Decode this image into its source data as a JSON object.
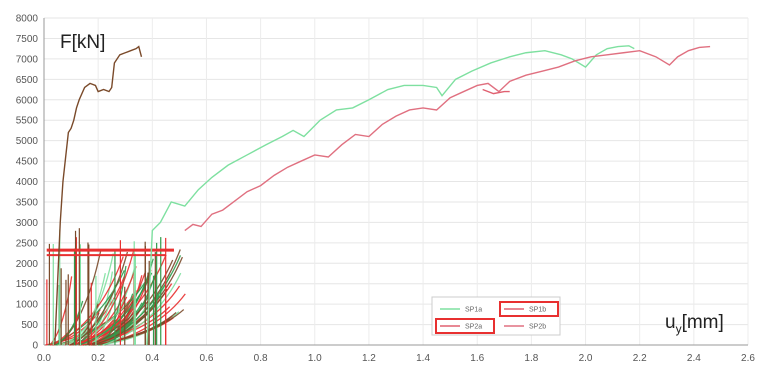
{
  "chart_data": {
    "type": "line",
    "title": "",
    "xlabel": "u",
    "xlabel_sub": "y",
    "xlabel_unit": "[mm]",
    "ylabel": "F[kN]",
    "xlim": [
      0,
      2.6
    ],
    "ylim": [
      0,
      8000
    ],
    "xticks": [
      "0.0",
      "0.2",
      "0.4",
      "0.6",
      "0.8",
      "1.0",
      "1.2",
      "1.4",
      "1.6",
      "1.8",
      "2.0",
      "2.2",
      "2.4",
      "2.6"
    ],
    "yticks": [
      "0",
      "500",
      "1000",
      "1500",
      "2000",
      "2500",
      "3000",
      "3500",
      "4000",
      "4500",
      "5000",
      "5500",
      "6000",
      "6500",
      "7000",
      "7500",
      "8000"
    ],
    "grid": true,
    "legend_position": "bottom-right",
    "colors": {
      "SP1a": "#7ee0a0",
      "SP1b": "#e06070",
      "SP2a": "#e06070",
      "SP2b": "#e07080",
      "highlight": "#e83030",
      "early": "#7a4a2a"
    },
    "series": [
      {
        "name": "SP1a",
        "color": "#7ee0a0",
        "x": [
          0.38,
          0.4,
          0.43,
          0.47,
          0.52,
          0.57,
          0.62,
          0.68,
          0.75,
          0.82,
          0.88,
          0.92,
          0.96,
          1.02,
          1.08,
          1.14,
          1.2,
          1.27,
          1.33,
          1.4,
          1.45,
          1.47,
          1.52,
          1.58,
          1.65,
          1.72,
          1.78,
          1.85,
          1.91,
          1.95,
          2.0,
          2.04,
          2.08,
          2.12,
          2.16,
          2.18
        ],
        "y": [
          0,
          2800,
          3000,
          3500,
          3400,
          3800,
          4100,
          4400,
          4650,
          4900,
          5100,
          5250,
          5100,
          5500,
          5750,
          5800,
          6000,
          6250,
          6350,
          6350,
          6300,
          6100,
          6500,
          6700,
          6900,
          7050,
          7150,
          7200,
          7100,
          7000,
          6800,
          7100,
          7250,
          7300,
          7320,
          7250
        ]
      },
      {
        "name": "SP2b",
        "color": "#e07080",
        "x": [
          0.52,
          0.55,
          0.58,
          0.62,
          0.66,
          0.7,
          0.75,
          0.8,
          0.85,
          0.9,
          0.95,
          1.0,
          1.05,
          1.1,
          1.15,
          1.2,
          1.25,
          1.3,
          1.35,
          1.4,
          1.45,
          1.5,
          1.55,
          1.6,
          1.64,
          1.68,
          1.72,
          1.78,
          1.84,
          1.9,
          1.96,
          2.02,
          2.08,
          2.14,
          2.2,
          2.26,
          2.31,
          2.34,
          2.38,
          2.42,
          2.46
        ],
        "y": [
          2800,
          2950,
          2900,
          3200,
          3300,
          3500,
          3750,
          3900,
          4150,
          4350,
          4500,
          4650,
          4600,
          4900,
          5150,
          5100,
          5400,
          5600,
          5750,
          5800,
          5750,
          6050,
          6200,
          6350,
          6400,
          6200,
          6450,
          6600,
          6700,
          6800,
          6950,
          7050,
          7100,
          7150,
          7200,
          7050,
          6850,
          7050,
          7200,
          7280,
          7300
        ]
      },
      {
        "name": "SP2a",
        "color": "#e06070",
        "x": [
          1.62,
          1.66,
          1.7,
          1.72
        ],
        "y": [
          6250,
          6150,
          6200,
          6200
        ]
      },
      {
        "name": "SP1b",
        "color": "#7a4a2a",
        "x": [
          0.04,
          0.05,
          0.06,
          0.07,
          0.08,
          0.09,
          0.1,
          0.11,
          0.12,
          0.13,
          0.15,
          0.17,
          0.19,
          0.2,
          0.22,
          0.24,
          0.25,
          0.26,
          0.27,
          0.28,
          0.3,
          0.32,
          0.34,
          0.35,
          0.36
        ],
        "y": [
          0,
          1500,
          3000,
          4000,
          4600,
          5200,
          5300,
          5500,
          5800,
          6000,
          6300,
          6400,
          6350,
          6200,
          6250,
          6200,
          6300,
          6900,
          7000,
          7100,
          7150,
          7200,
          7250,
          7300,
          7050
        ]
      }
    ],
    "legend": [
      {
        "label": "SP1a",
        "color": "#7ee0a0",
        "boxed": false
      },
      {
        "label": "SP1b",
        "color": "#e06070",
        "boxed": true
      },
      {
        "label": "SP2a",
        "color": "#e06070",
        "boxed": true
      },
      {
        "label": "SP2b",
        "color": "#e07080",
        "boxed": false
      }
    ]
  }
}
